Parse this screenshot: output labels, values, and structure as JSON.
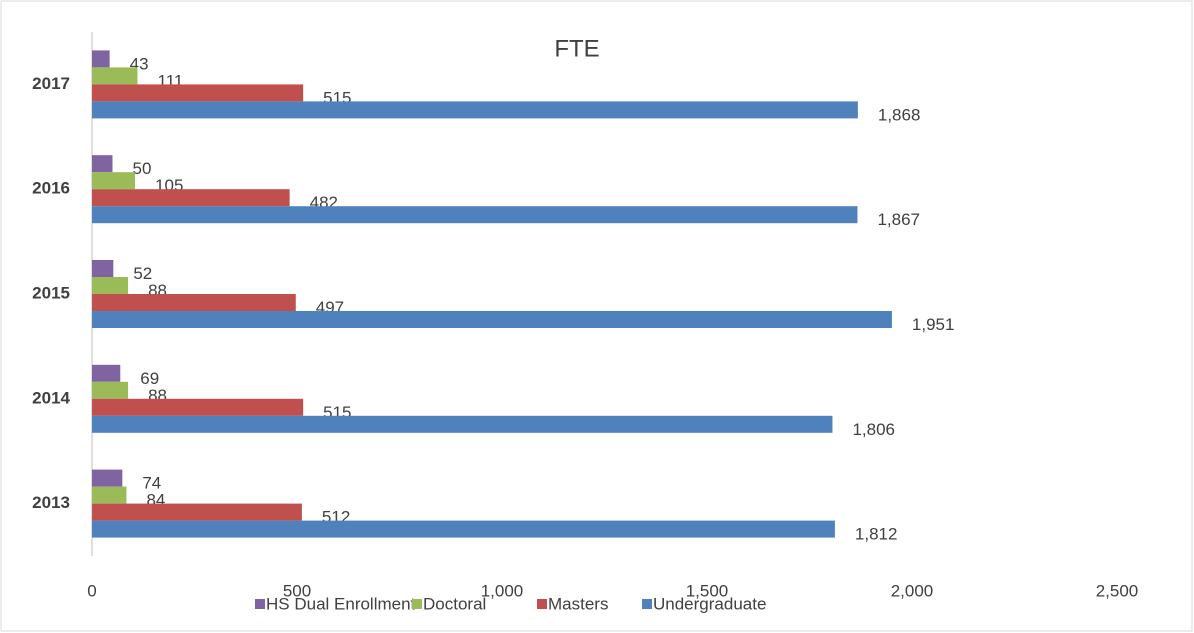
{
  "chart_data": {
    "type": "hbar",
    "title": "FTE",
    "categories": [
      "2013",
      "2014",
      "2015",
      "2016",
      "2017"
    ],
    "series": [
      {
        "name": "HS Dual Enrollment",
        "color": "#8064a2",
        "values": [
          74,
          69,
          52,
          50,
          43
        ]
      },
      {
        "name": "Doctoral",
        "color": "#9bbb59",
        "values": [
          84,
          88,
          88,
          105,
          111
        ]
      },
      {
        "name": "Masters",
        "color": "#c0504d",
        "values": [
          512,
          515,
          497,
          482,
          515
        ]
      },
      {
        "name": "Undergraduate",
        "color": "#4f81bd",
        "values": [
          1812,
          1806,
          1951,
          1867,
          1868
        ],
        "value_labels": [
          "1,812",
          "1,806",
          "1,951",
          "1,867",
          "1,868"
        ]
      }
    ],
    "xlim": [
      0,
      2500
    ],
    "xticks": [
      0,
      500,
      {
        "value": 1000,
        "label": "1,000"
      },
      {
        "value": 1500,
        "label": "1,500"
      },
      {
        "value": 2000,
        "label": "2,000"
      },
      {
        "value": 2500,
        "label": "2,500"
      }
    ],
    "legend": "bottom",
    "grid": false
  }
}
